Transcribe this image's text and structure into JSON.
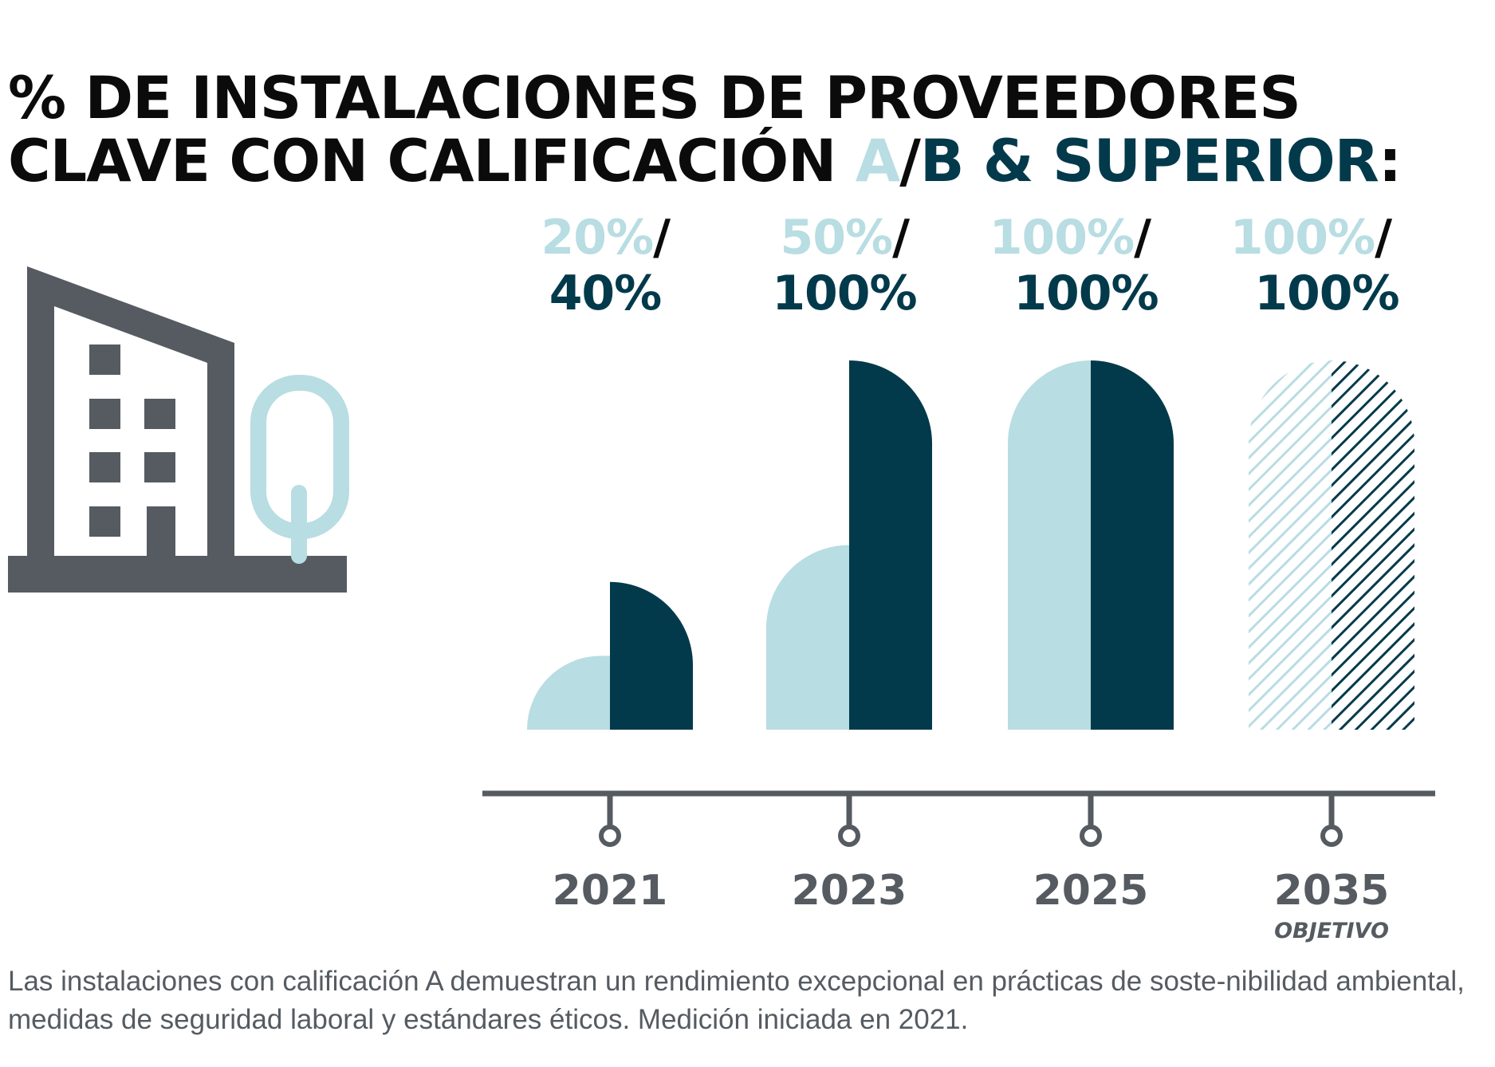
{
  "title": {
    "line1": "% DE INSTALACIONES DE PROVEEDORES",
    "line2_prefix": "CLAVE CON CALIFICACIÓN ",
    "line2_a": "A",
    "line2_slash": "/",
    "line2_b": "B & SUPERIOR",
    "line2_colon": ":"
  },
  "colors": {
    "a_rating": "#b8dde2",
    "b_rating": "#023a4b",
    "axis": "#555b61",
    "icon_building": "#555b61",
    "icon_tree": "#b8dde2"
  },
  "icon": "building-with-tree-icon",
  "chart_data": {
    "type": "bar",
    "categories": [
      "2021",
      "2023",
      "2025",
      "2035"
    ],
    "category_notes": [
      "",
      "",
      "",
      "OBJETIVO"
    ],
    "series": [
      {
        "name": "A",
        "values": [
          20,
          50,
          100,
          100
        ],
        "labels": [
          "20%",
          "50%",
          "100%",
          "100%"
        ]
      },
      {
        "name": "B & SUPERIOR",
        "values": [
          40,
          100,
          100,
          100
        ],
        "labels": [
          "40%",
          "100%",
          "100%",
          "100%"
        ]
      }
    ],
    "label_separator": "/",
    "projected_categories": [
      "2035"
    ],
    "ylim": [
      0,
      100
    ],
    "grid": false,
    "legend": "none"
  },
  "caption": "Las instalaciones con calificación A demuestran un rendimiento excepcional en prácticas de soste-nibilidad ambiental, medidas de seguridad laboral y estándares éticos. Medición iniciada en 2021."
}
